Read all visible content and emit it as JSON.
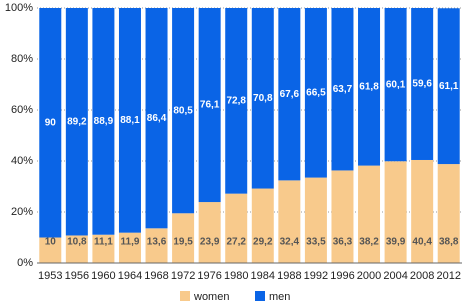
{
  "chart_data": {
    "type": "stacked-bar",
    "categories": [
      "1953",
      "1956",
      "1960",
      "1964",
      "1968",
      "1972",
      "1976",
      "1980",
      "1984",
      "1988",
      "1992",
      "1996",
      "2000",
      "2004",
      "2008",
      "2012"
    ],
    "series": [
      {
        "name": "women",
        "color": "#f8ca8c",
        "values": [
          10,
          10.8,
          11.1,
          11.9,
          13.6,
          19.5,
          23.9,
          27.2,
          29.2,
          32.4,
          33.5,
          36.3,
          38.2,
          39.9,
          40.4,
          38.8
        ],
        "value_labels": [
          "10",
          "10,8",
          "11,1",
          "11,9",
          "13,6",
          "19,5",
          "23,9",
          "27,2",
          "29,2",
          "32,4",
          "33,5",
          "36,3",
          "38,2",
          "39,9",
          "40,4",
          "38,8"
        ]
      },
      {
        "name": "men",
        "color": "#0a64e6",
        "values": [
          90,
          89.2,
          88.9,
          88.1,
          86.4,
          80.5,
          76.1,
          72.8,
          70.8,
          67.6,
          66.5,
          63.7,
          61.8,
          60.1,
          59.6,
          61.1
        ],
        "value_labels": [
          "90",
          "89,2",
          "88,9",
          "88,1",
          "86,4",
          "80,5",
          "76,1",
          "72,8",
          "70,8",
          "67,6",
          "66,5",
          "63,7",
          "61,8",
          "60,1",
          "59,6",
          "61,1"
        ]
      }
    ],
    "ylim": [
      0,
      100
    ],
    "yticks": [
      {
        "value": 0,
        "label": "0%"
      },
      {
        "value": 20,
        "label": "20%"
      },
      {
        "value": 40,
        "label": "40%"
      },
      {
        "value": 60,
        "label": "60%"
      },
      {
        "value": 80,
        "label": "80%"
      },
      {
        "value": 100,
        "label": "100%"
      }
    ],
    "grid": true,
    "legend": "bottom"
  }
}
